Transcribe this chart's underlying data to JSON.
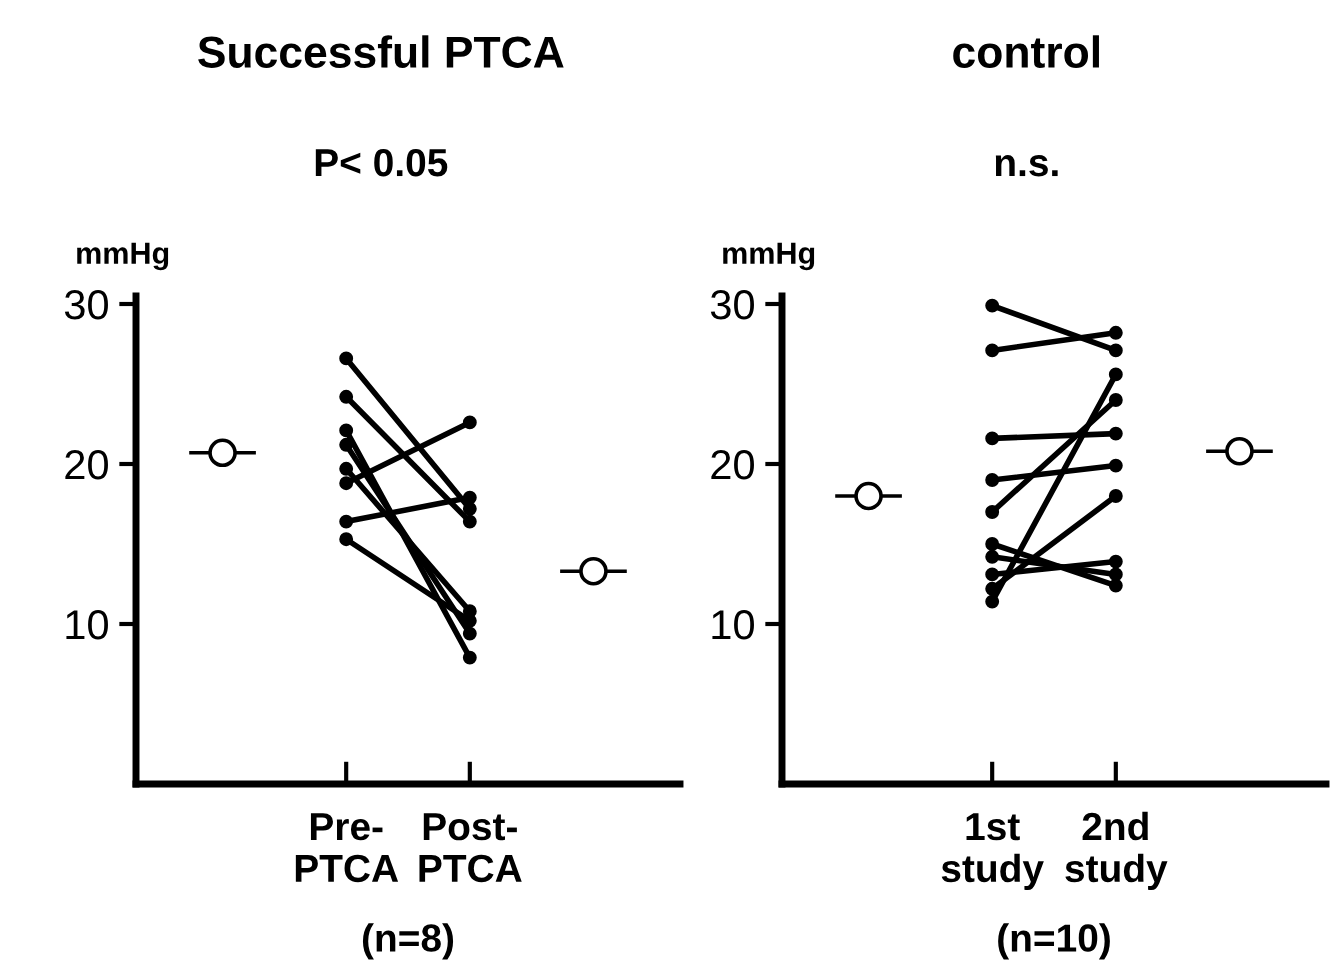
{
  "chart_data": [
    {
      "type": "line",
      "title": "Successful PTCA",
      "subtitle": "P< 0.05",
      "ylabel": "mmHg",
      "xlabel": "(n=8)",
      "categories": [
        null,
        "Pre-\nPTCA",
        "Post-\nPTCA",
        null
      ],
      "ylim": [
        0,
        30.5
      ],
      "yticks": [
        10,
        20,
        30
      ],
      "grid": false,
      "legend": false,
      "marker": "circle",
      "line_style": "solid",
      "series": [
        {
          "color": "#000000",
          "values": [
            null,
            26.6,
            17.2,
            null
          ]
        },
        {
          "color": "#000000",
          "values": [
            null,
            24.2,
            16.4,
            null
          ]
        },
        {
          "color": "#000000",
          "values": [
            null,
            22.1,
            7.9,
            null
          ]
        },
        {
          "color": "#000000",
          "values": [
            null,
            21.2,
            9.4,
            null
          ]
        },
        {
          "color": "#000000",
          "values": [
            null,
            19.7,
            10.8,
            null
          ]
        },
        {
          "color": "#000000",
          "values": [
            null,
            18.8,
            22.6,
            null
          ]
        },
        {
          "color": "#000000",
          "values": [
            null,
            16.4,
            17.9,
            null
          ]
        },
        {
          "color": "#000000",
          "values": [
            null,
            15.3,
            10.2,
            null
          ]
        },
        {
          "type": "scatter",
          "marker": "circle",
          "color": "#000000",
          "values": [
            20.7,
            null,
            null,
            13.3
          ]
        }
      ]
    },
    {
      "type": "line",
      "title": "control",
      "subtitle": "n.s.",
      "ylabel": "mmHg",
      "xlabel": "(n=10)",
      "categories": [
        null,
        "1st\nstudy",
        "2nd\nstudy",
        null
      ],
      "ylim": [
        0,
        30.5
      ],
      "yticks": [
        10,
        20,
        30
      ],
      "grid": false,
      "legend": false,
      "marker": "circle",
      "line_style": "solid",
      "series": [
        {
          "color": "#000000",
          "values": [
            null,
            29.9,
            27.1,
            null
          ]
        },
        {
          "color": "#000000",
          "values": [
            null,
            27.1,
            28.2,
            null
          ]
        },
        {
          "color": "#000000",
          "values": [
            null,
            21.6,
            21.9,
            null
          ]
        },
        {
          "color": "#000000",
          "values": [
            null,
            19.0,
            19.9,
            null
          ]
        },
        {
          "color": "#000000",
          "values": [
            null,
            17.0,
            24.0,
            null
          ]
        },
        {
          "color": "#000000",
          "values": [
            null,
            15.0,
            12.4,
            null
          ]
        },
        {
          "color": "#000000",
          "values": [
            null,
            14.2,
            13.1,
            null
          ]
        },
        {
          "color": "#000000",
          "values": [
            null,
            13.1,
            13.9,
            null
          ]
        },
        {
          "color": "#000000",
          "values": [
            null,
            12.2,
            18.0,
            null
          ]
        },
        {
          "color": "#000000",
          "values": [
            null,
            11.4,
            25.6,
            null
          ]
        },
        {
          "type": "scatter",
          "marker": "circle",
          "color": "#000000",
          "values": [
            18.0,
            null,
            null,
            20.8
          ]
        }
      ]
    }
  ]
}
